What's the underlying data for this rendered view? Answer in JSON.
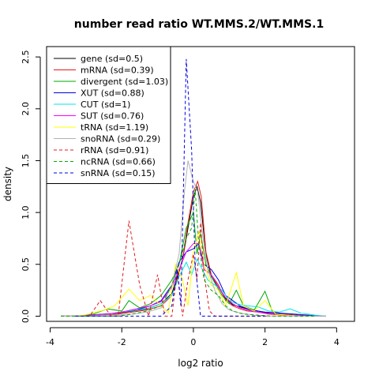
{
  "chart_data": {
    "type": "line",
    "title": "number read ratio WT.MMS.2/WT.MMS.1",
    "xlabel": "log2 ratio",
    "ylabel": "density",
    "xlim": [
      -4.1,
      4.5
    ],
    "ylim": [
      -0.05,
      2.6
    ],
    "xticks": [
      -4,
      -2,
      0,
      2,
      4
    ],
    "yticks": [
      0.0,
      0.5,
      1.0,
      1.5,
      2.0,
      2.5
    ],
    "grid": false,
    "legend_position": "top-left",
    "series": [
      {
        "name": "gene (sd=0.5)",
        "color": "#000000",
        "dash": "solid",
        "points": [
          [
            -3.7,
            0
          ],
          [
            -3.3,
            0
          ],
          [
            -2.9,
            0.01
          ],
          [
            -2.5,
            0.02
          ],
          [
            -2.1,
            0.03
          ],
          [
            -1.7,
            0.05
          ],
          [
            -1.3,
            0.07
          ],
          [
            -0.9,
            0.12
          ],
          [
            -0.6,
            0.22
          ],
          [
            -0.45,
            0.38
          ],
          [
            -0.3,
            0.55
          ],
          [
            -0.15,
            0.85
          ],
          [
            0,
            1.15
          ],
          [
            0.1,
            1.25
          ],
          [
            0.2,
            1.1
          ],
          [
            0.35,
            0.6
          ],
          [
            0.5,
            0.38
          ],
          [
            0.7,
            0.28
          ],
          [
            0.9,
            0.17
          ],
          [
            1.1,
            0.11
          ],
          [
            1.3,
            0.09
          ],
          [
            1.5,
            0.07
          ],
          [
            1.8,
            0.05
          ],
          [
            2.1,
            0.03
          ],
          [
            2.5,
            0.02
          ],
          [
            2.9,
            0.01
          ],
          [
            3.3,
            0
          ],
          [
            3.7,
            0
          ]
        ]
      },
      {
        "name": "mRNA (sd=0.39)",
        "color": "#e31a1c",
        "dash": "solid",
        "points": [
          [
            -3.7,
            0
          ],
          [
            -3.3,
            0
          ],
          [
            -2.9,
            0.01
          ],
          [
            -2.5,
            0.01
          ],
          [
            -2.1,
            0.02
          ],
          [
            -1.7,
            0.04
          ],
          [
            -1.3,
            0.06
          ],
          [
            -0.9,
            0.1
          ],
          [
            -0.6,
            0.2
          ],
          [
            -0.45,
            0.35
          ],
          [
            -0.3,
            0.55
          ],
          [
            -0.15,
            0.9
          ],
          [
            0,
            1.2
          ],
          [
            0.12,
            1.3
          ],
          [
            0.22,
            1.15
          ],
          [
            0.35,
            0.62
          ],
          [
            0.5,
            0.4
          ],
          [
            0.7,
            0.3
          ],
          [
            0.9,
            0.15
          ],
          [
            1.1,
            0.1
          ],
          [
            1.3,
            0.07
          ],
          [
            1.5,
            0.05
          ],
          [
            1.8,
            0.04
          ],
          [
            2.1,
            0.02
          ],
          [
            2.5,
            0.01
          ],
          [
            2.9,
            0
          ],
          [
            3.3,
            0
          ],
          [
            3.7,
            0
          ]
        ]
      },
      {
        "name": "divergent (sd=1.03)",
        "color": "#00aa00",
        "dash": "solid",
        "points": [
          [
            -3.7,
            0
          ],
          [
            -3.2,
            0
          ],
          [
            -2.8,
            0.02
          ],
          [
            -2.4,
            0.07
          ],
          [
            -2.0,
            0.05
          ],
          [
            -1.8,
            0.15
          ],
          [
            -1.5,
            0.08
          ],
          [
            -1.2,
            0.12
          ],
          [
            -0.9,
            0.2
          ],
          [
            -0.6,
            0.35
          ],
          [
            -0.4,
            0.5
          ],
          [
            -0.2,
            0.85
          ],
          [
            0,
            1.0
          ],
          [
            0.1,
            0.6
          ],
          [
            0.2,
            0.8
          ],
          [
            0.35,
            0.5
          ],
          [
            0.55,
            0.35
          ],
          [
            0.8,
            0.2
          ],
          [
            1.0,
            0.12
          ],
          [
            1.2,
            0.25
          ],
          [
            1.4,
            0.1
          ],
          [
            1.7,
            0.06
          ],
          [
            2.0,
            0.24
          ],
          [
            2.2,
            0.05
          ],
          [
            2.5,
            0.02
          ],
          [
            2.8,
            0.01
          ],
          [
            3.2,
            0
          ],
          [
            3.6,
            0
          ]
        ]
      },
      {
        "name": "XUT (sd=0.88)",
        "color": "#0000dd",
        "dash": "solid",
        "points": [
          [
            -3.7,
            0
          ],
          [
            -3.2,
            0
          ],
          [
            -2.8,
            0.01
          ],
          [
            -2.4,
            0.02
          ],
          [
            -2.0,
            0.04
          ],
          [
            -1.6,
            0.06
          ],
          [
            -1.2,
            0.1
          ],
          [
            -0.9,
            0.15
          ],
          [
            -0.6,
            0.3
          ],
          [
            -0.4,
            0.52
          ],
          [
            -0.2,
            0.62
          ],
          [
            0,
            0.65
          ],
          [
            0.15,
            0.7
          ],
          [
            0.3,
            0.5
          ],
          [
            0.5,
            0.45
          ],
          [
            0.7,
            0.35
          ],
          [
            0.9,
            0.2
          ],
          [
            1.1,
            0.15
          ],
          [
            1.3,
            0.1
          ],
          [
            1.6,
            0.06
          ],
          [
            2.0,
            0.04
          ],
          [
            2.4,
            0.03
          ],
          [
            2.8,
            0.02
          ],
          [
            3.2,
            0.01
          ],
          [
            3.6,
            0
          ]
        ]
      },
      {
        "name": "CUT (sd=1)",
        "color": "#00e5ee",
        "dash": "solid",
        "points": [
          [
            -3.7,
            0
          ],
          [
            -3.2,
            0
          ],
          [
            -2.8,
            0.01
          ],
          [
            -2.4,
            0.02
          ],
          [
            -2.0,
            0.04
          ],
          [
            -1.6,
            0.06
          ],
          [
            -1.2,
            0.08
          ],
          [
            -0.9,
            0.12
          ],
          [
            -0.6,
            0.2
          ],
          [
            -0.4,
            0.38
          ],
          [
            -0.2,
            0.52
          ],
          [
            -0.05,
            0.4
          ],
          [
            0.1,
            0.55
          ],
          [
            0.25,
            0.45
          ],
          [
            0.4,
            0.35
          ],
          [
            0.6,
            0.3
          ],
          [
            0.8,
            0.25
          ],
          [
            1.0,
            0.15
          ],
          [
            1.2,
            0.12
          ],
          [
            1.5,
            0.1
          ],
          [
            1.8,
            0.09
          ],
          [
            2.1,
            0.05
          ],
          [
            2.4,
            0.04
          ],
          [
            2.7,
            0.07
          ],
          [
            3.0,
            0.03
          ],
          [
            3.4,
            0.01
          ],
          [
            3.7,
            0
          ]
        ]
      },
      {
        "name": "SUT (sd=0.76)",
        "color": "#ff00ff",
        "dash": "solid",
        "points": [
          [
            -3.7,
            0
          ],
          [
            -3.2,
            0
          ],
          [
            -2.8,
            0.01
          ],
          [
            -2.4,
            0.02
          ],
          [
            -2.0,
            0.04
          ],
          [
            -1.6,
            0.07
          ],
          [
            -1.2,
            0.1
          ],
          [
            -0.9,
            0.14
          ],
          [
            -0.6,
            0.28
          ],
          [
            -0.4,
            0.45
          ],
          [
            -0.2,
            0.62
          ],
          [
            0,
            0.7
          ],
          [
            0.15,
            0.7
          ],
          [
            0.3,
            0.45
          ],
          [
            0.5,
            0.4
          ],
          [
            0.7,
            0.28
          ],
          [
            0.9,
            0.18
          ],
          [
            1.1,
            0.12
          ],
          [
            1.3,
            0.08
          ],
          [
            1.6,
            0.05
          ],
          [
            2.0,
            0.03
          ],
          [
            2.4,
            0.02
          ],
          [
            2.8,
            0.01
          ],
          [
            3.2,
            0
          ],
          [
            3.6,
            0
          ]
        ]
      },
      {
        "name": "tRNA (sd=1.19)",
        "color": "#ffff00",
        "dash": "solid",
        "points": [
          [
            -3.7,
            0
          ],
          [
            -3.2,
            0
          ],
          [
            -2.8,
            0.03
          ],
          [
            -2.5,
            0.06
          ],
          [
            -2.2,
            0.1
          ],
          [
            -1.8,
            0.26
          ],
          [
            -1.5,
            0.15
          ],
          [
            -1.2,
            0.2
          ],
          [
            -0.9,
            0.1
          ],
          [
            -0.7,
            0.03
          ],
          [
            -0.5,
            0.5
          ],
          [
            -0.3,
            0.35
          ],
          [
            -0.15,
            0.1
          ],
          [
            0,
            0.6
          ],
          [
            0.15,
            0.82
          ],
          [
            0.3,
            0.5
          ],
          [
            0.5,
            0.3
          ],
          [
            0.7,
            0.25
          ],
          [
            0.9,
            0.1
          ],
          [
            1.2,
            0.42
          ],
          [
            1.4,
            0.1
          ],
          [
            1.7,
            0.05
          ],
          [
            2.0,
            0.15
          ],
          [
            2.3,
            0.02
          ],
          [
            2.6,
            0.01
          ],
          [
            3.0,
            0
          ],
          [
            3.4,
            0
          ]
        ]
      },
      {
        "name": "snoRNA (sd=0.29)",
        "color": "#b3b3b3",
        "dash": "solid",
        "points": [
          [
            -3.7,
            0
          ],
          [
            -3.3,
            0
          ],
          [
            -2.9,
            0
          ],
          [
            -2.5,
            0.01
          ],
          [
            -2.1,
            0.01
          ],
          [
            -1.7,
            0.02
          ],
          [
            -1.3,
            0.04
          ],
          [
            -0.9,
            0.08
          ],
          [
            -0.6,
            0.3
          ],
          [
            -0.4,
            0.6
          ],
          [
            -0.25,
            1.2
          ],
          [
            -0.15,
            1.5
          ],
          [
            0,
            1.3
          ],
          [
            0.12,
            1.2
          ],
          [
            0.25,
            0.8
          ],
          [
            0.4,
            0.45
          ],
          [
            0.6,
            0.25
          ],
          [
            0.8,
            0.12
          ],
          [
            1.0,
            0.06
          ],
          [
            1.3,
            0.03
          ],
          [
            1.7,
            0.01
          ],
          [
            2.1,
            0
          ],
          [
            2.5,
            0
          ],
          [
            2.9,
            0
          ],
          [
            3.3,
            0
          ],
          [
            3.7,
            0
          ]
        ]
      },
      {
        "name": "rRNA (sd=0.91)",
        "color": "#e31a1c",
        "dash": "dashed",
        "points": [
          [
            -3.3,
            0
          ],
          [
            -2.9,
            0
          ],
          [
            -2.6,
            0.15
          ],
          [
            -2.3,
            0
          ],
          [
            -2.1,
            0
          ],
          [
            -1.8,
            0.92
          ],
          [
            -1.5,
            0.3
          ],
          [
            -1.25,
            0
          ],
          [
            -1.0,
            0.4
          ],
          [
            -0.8,
            0
          ],
          [
            -0.6,
            0
          ],
          [
            -0.45,
            0.45
          ],
          [
            -0.3,
            0
          ],
          [
            -0.15,
            0.35
          ],
          [
            0,
            0.6
          ],
          [
            0.1,
            0.35
          ],
          [
            0.2,
            0.9
          ],
          [
            0.3,
            0.4
          ],
          [
            0.45,
            0.05
          ],
          [
            0.6,
            0
          ],
          [
            0.9,
            0
          ],
          [
            1.3,
            0
          ],
          [
            1.7,
            0
          ],
          [
            2.1,
            0
          ]
        ]
      },
      {
        "name": "ncRNA (sd=0.66)",
        "color": "#00aa00",
        "dash": "dashed",
        "points": [
          [
            -3.7,
            0
          ],
          [
            -3.3,
            0
          ],
          [
            -2.9,
            0
          ],
          [
            -2.5,
            0
          ],
          [
            -2.1,
            0
          ],
          [
            -1.7,
            0.02
          ],
          [
            -1.3,
            0.05
          ],
          [
            -0.9,
            0.1
          ],
          [
            -0.6,
            0.3
          ],
          [
            -0.4,
            0.5
          ],
          [
            -0.2,
            0.75
          ],
          [
            -0.05,
            0.85
          ],
          [
            0.05,
            1.22
          ],
          [
            0.15,
            0.7
          ],
          [
            0.3,
            0.35
          ],
          [
            0.5,
            0.25
          ],
          [
            0.7,
            0.2
          ],
          [
            0.9,
            0.1
          ],
          [
            1.1,
            0.05
          ],
          [
            1.4,
            0.02
          ],
          [
            1.8,
            0.01
          ],
          [
            2.2,
            0
          ],
          [
            2.6,
            0
          ],
          [
            3.0,
            0
          ],
          [
            3.4,
            0
          ]
        ]
      },
      {
        "name": "snRNA (sd=0.15)",
        "color": "#0000dd",
        "dash": "dashed",
        "points": [
          [
            -3.3,
            0
          ],
          [
            -2.9,
            0
          ],
          [
            -2.5,
            0
          ],
          [
            -2.1,
            0
          ],
          [
            -1.7,
            0
          ],
          [
            -1.3,
            0
          ],
          [
            -0.9,
            0
          ],
          [
            -0.6,
            0.1
          ],
          [
            -0.45,
            0.45
          ],
          [
            -0.35,
            0.1
          ],
          [
            -0.2,
            2.48
          ],
          [
            -0.05,
            1.6
          ],
          [
            0.05,
            0.5
          ],
          [
            0.2,
            0
          ],
          [
            0.4,
            0
          ],
          [
            0.8,
            0
          ],
          [
            1.2,
            0
          ],
          [
            1.6,
            0
          ],
          [
            2.0,
            0
          ]
        ]
      }
    ]
  }
}
